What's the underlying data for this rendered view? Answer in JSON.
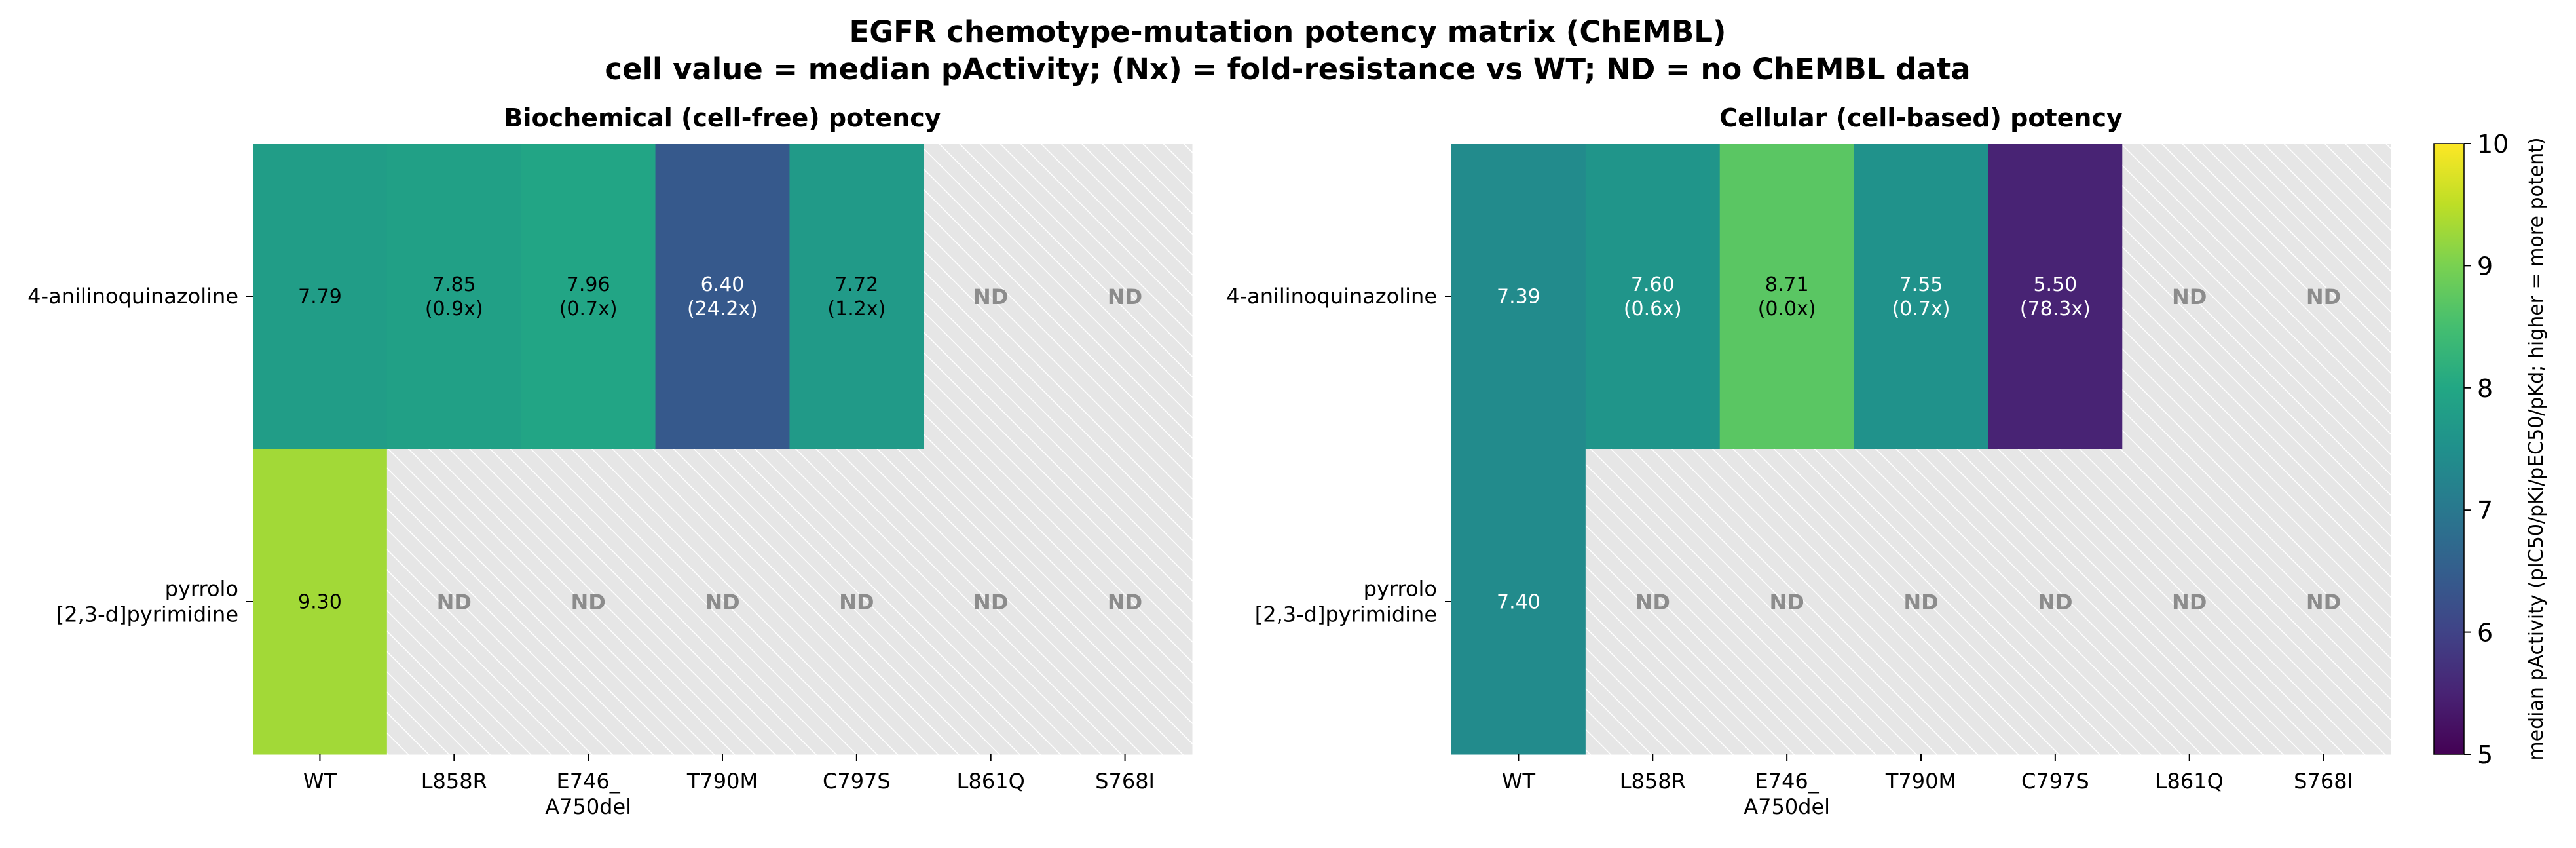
{
  "title_line1": "EGFR chemotype-mutation potency matrix (ChEMBL)",
  "title_line2": "cell value = median pActivity; (Nx) = fold-resistance vs WT; ND = no ChEMBL data",
  "nd_label": "ND",
  "chart_data": {
    "type": "heatmap",
    "columns": [
      "WT",
      "L858R",
      "E746_\nA750del",
      "T790M",
      "C797S",
      "L861Q",
      "S768I"
    ],
    "rows": [
      "4-anilinoquinazoline",
      "pyrrolo\n[2,3-d]pyrimidine"
    ],
    "panels": [
      {
        "title": "Biochemical (cell-free) potency",
        "values": [
          [
            7.79,
            7.85,
            7.96,
            6.4,
            7.72,
            null,
            null
          ],
          [
            9.3,
            null,
            null,
            null,
            null,
            null,
            null
          ]
        ],
        "fold": [
          [
            null,
            "(0.9x)",
            "(0.7x)",
            "(24.2x)",
            "(1.2x)",
            null,
            null
          ],
          [
            null,
            null,
            null,
            null,
            null,
            null,
            null
          ]
        ]
      },
      {
        "title": "Cellular (cell-based) potency",
        "values": [
          [
            7.39,
            7.6,
            8.71,
            7.55,
            5.5,
            null,
            null
          ],
          [
            7.4,
            null,
            null,
            null,
            null,
            null,
            null
          ]
        ],
        "fold": [
          [
            null,
            "(0.6x)",
            "(0.0x)",
            "(0.7x)",
            "(78.3x)",
            null,
            null
          ],
          [
            null,
            null,
            null,
            null,
            null,
            null,
            null
          ]
        ]
      }
    ],
    "colorbar": {
      "label": "median pActivity  (pIC50/pKi/pEC50/pKd;  higher = more potent)",
      "range": [
        5,
        10
      ],
      "ticks": [
        5,
        6,
        7,
        8,
        9,
        10
      ],
      "colormap": "viridis"
    }
  }
}
